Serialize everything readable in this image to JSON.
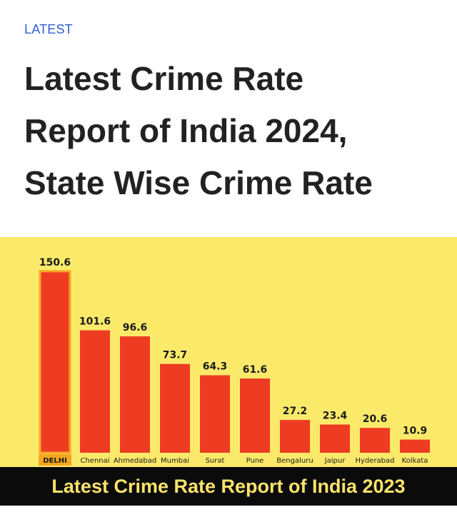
{
  "article": {
    "kicker": "LATEST",
    "headline": "Latest Crime Rate\nReport of India 2024,\nState Wise Crime Rate"
  },
  "colors": {
    "panel_background": "#fbea6a",
    "bar": "#ee3c23",
    "highlight_bar_outline": "#f7a622",
    "highlight_label_background": "#f7a622",
    "caption_text": "#fbe36a",
    "caption_background": "#0b0b0b"
  },
  "chart_data": {
    "type": "bar",
    "categories": [
      "DELHI",
      "Chennai",
      "Ahmedabad",
      "Mumbai",
      "Surat",
      "Pune",
      "Bengaluru",
      "Jaipur",
      "Hyderabad",
      "Kolkata"
    ],
    "values": [
      150.6,
      101.6,
      96.6,
      73.7,
      64.3,
      61.6,
      27.2,
      23.4,
      20.6,
      10.9
    ],
    "data_labels": [
      "150.6",
      "101.6",
      "96.6",
      "73.7",
      "64.3",
      "61.6",
      "27.2",
      "23.4",
      "20.6",
      "10.9"
    ],
    "highlighted_category": "DELHI",
    "ylim": [
      0,
      160
    ],
    "grid": false,
    "legend": "none",
    "title": "",
    "xlabel": "",
    "ylabel": ""
  },
  "caption": "Latest Crime Rate Report of India 2023"
}
